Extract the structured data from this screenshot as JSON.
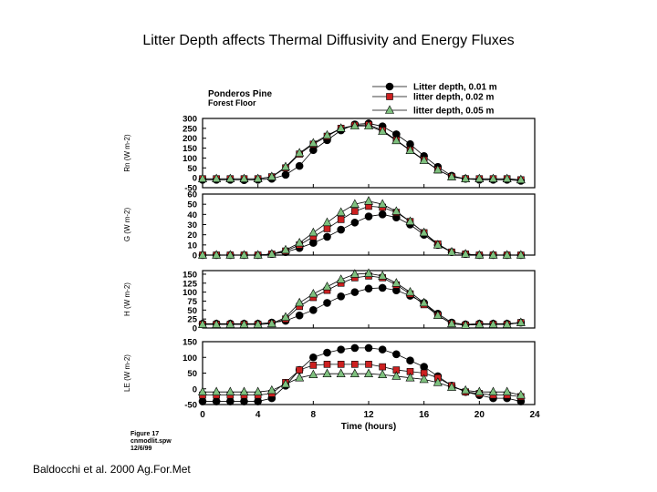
{
  "slide_title": "Litter Depth affects Thermal Diffusivity and Energy Fluxes",
  "citation": "Baldocchi et al. 2000 Ag.For.Met",
  "figure_note": [
    "Ponderos Pine",
    "Forest Floor"
  ],
  "figure_caption": [
    "Figure 17",
    "cnmodlit.spw",
    "12/6/99"
  ],
  "chart_data": {
    "type": "scatter",
    "xlabel": "Time (hours)",
    "xlim": [
      0,
      24
    ],
    "xticks": [
      0,
      4,
      8,
      12,
      16,
      20,
      24
    ],
    "x": [
      0,
      1,
      2,
      3,
      4,
      5,
      6,
      7,
      8,
      9,
      10,
      11,
      12,
      13,
      14,
      15,
      16,
      17,
      18,
      19,
      20,
      21,
      22,
      23
    ],
    "legend": {
      "position": "top-right",
      "entries": [
        "Litter depth, 0.01 m",
        "litter depth, 0.02 m",
        "litter depth, 0.05 m"
      ]
    },
    "series_styles": [
      {
        "marker": "circle",
        "color": "#000000"
      },
      {
        "marker": "square",
        "color": "#cc2020"
      },
      {
        "marker": "triangle",
        "color": "#7ec07e"
      }
    ],
    "panels": [
      {
        "ylabel": "Rn (W m-2)",
        "ylim": [
          -50,
          300
        ],
        "yticks": [
          -50,
          0,
          50,
          100,
          150,
          200,
          250,
          300
        ],
        "series": [
          {
            "name": "Litter depth, 0.01 m",
            "values": [
              -10,
              -10,
              -10,
              -12,
              -10,
              -5,
              15,
              60,
              140,
              190,
              240,
              270,
              275,
              260,
              220,
              170,
              110,
              55,
              10,
              -5,
              -10,
              -10,
              -10,
              -15
            ]
          },
          {
            "name": "litter depth, 0.02 m",
            "values": [
              -5,
              -5,
              -5,
              -5,
              -5,
              5,
              50,
              120,
              170,
              210,
              250,
              265,
              268,
              240,
              190,
              140,
              90,
              40,
              5,
              -5,
              -5,
              -5,
              -5,
              -10
            ]
          },
          {
            "name": "litter depth, 0.05 m",
            "values": [
              -5,
              -5,
              -5,
              -5,
              -5,
              5,
              55,
              125,
              175,
              215,
              250,
              262,
              262,
              235,
              188,
              138,
              88,
              40,
              5,
              -5,
              -5,
              -5,
              -5,
              -10
            ]
          }
        ]
      },
      {
        "ylabel": "G (W m-2)",
        "ylim": [
          0,
          60
        ],
        "yticks": [
          0,
          10,
          20,
          30,
          40,
          50,
          60
        ],
        "series": [
          {
            "name": "Litter depth, 0.01 m",
            "values": [
              0,
              0,
              0,
              0,
              0,
              1,
              3,
              7,
              12,
              18,
              25,
              32,
              38,
              40,
              37,
              30,
              20,
              10,
              3,
              1,
              0,
              0,
              0,
              0
            ]
          },
          {
            "name": "litter depth, 0.02 m",
            "values": [
              0,
              0,
              0,
              0,
              0,
              1,
              4,
              10,
              18,
              26,
              35,
              43,
              48,
              47,
              42,
              33,
              22,
              11,
              3,
              1,
              0,
              0,
              0,
              0
            ]
          },
          {
            "name": "litter depth, 0.05 m",
            "values": [
              0,
              0,
              0,
              0,
              0,
              1,
              5,
              12,
              22,
              32,
              42,
              50,
              53,
              50,
              43,
              33,
              22,
              10,
              3,
              1,
              0,
              0,
              0,
              0
            ]
          }
        ]
      },
      {
        "ylabel": "H (W m-2)",
        "ylim": [
          0,
          160
        ],
        "yticks": [
          0,
          25,
          50,
          75,
          100,
          125,
          150
        ],
        "series": [
          {
            "name": "Litter depth, 0.01 m",
            "values": [
              12,
              12,
              12,
              12,
              12,
              15,
              20,
              35,
              50,
              70,
              88,
              100,
              110,
              112,
              105,
              90,
              70,
              40,
              15,
              10,
              12,
              12,
              12,
              15
            ]
          },
          {
            "name": "litter depth, 0.02 m",
            "values": [
              10,
              10,
              10,
              10,
              10,
              12,
              25,
              60,
              85,
              105,
              125,
              140,
              145,
              140,
              120,
              95,
              65,
              35,
              12,
              8,
              10,
              10,
              10,
              15
            ]
          },
          {
            "name": "litter depth, 0.05 m",
            "values": [
              10,
              10,
              10,
              10,
              10,
              12,
              30,
              70,
              95,
              115,
              135,
              150,
              152,
              145,
              125,
              100,
              70,
              35,
              12,
              8,
              10,
              10,
              10,
              15
            ]
          }
        ]
      },
      {
        "ylabel": "LE (W m-2)",
        "ylim": [
          -50,
          150
        ],
        "yticks": [
          -50,
          0,
          50,
          100,
          150
        ],
        "series": [
          {
            "name": "Litter depth, 0.01 m",
            "values": [
              -40,
              -40,
              -40,
              -40,
              -40,
              -30,
              10,
              60,
              100,
              115,
              125,
              130,
              130,
              125,
              110,
              90,
              70,
              40,
              10,
              -10,
              -20,
              -30,
              -30,
              -40
            ]
          },
          {
            "name": "litter depth, 0.02 m",
            "values": [
              -20,
              -20,
              -20,
              -20,
              -20,
              -15,
              20,
              60,
              75,
              78,
              78,
              78,
              78,
              70,
              60,
              55,
              50,
              35,
              10,
              -10,
              -15,
              -20,
              -20,
              -25
            ]
          },
          {
            "name": "litter depth, 0.05 m",
            "values": [
              -10,
              -10,
              -10,
              -10,
              -10,
              -5,
              15,
              35,
              45,
              48,
              48,
              48,
              48,
              45,
              40,
              35,
              30,
              20,
              5,
              -5,
              -10,
              -10,
              -10,
              -20
            ]
          }
        ]
      }
    ]
  }
}
